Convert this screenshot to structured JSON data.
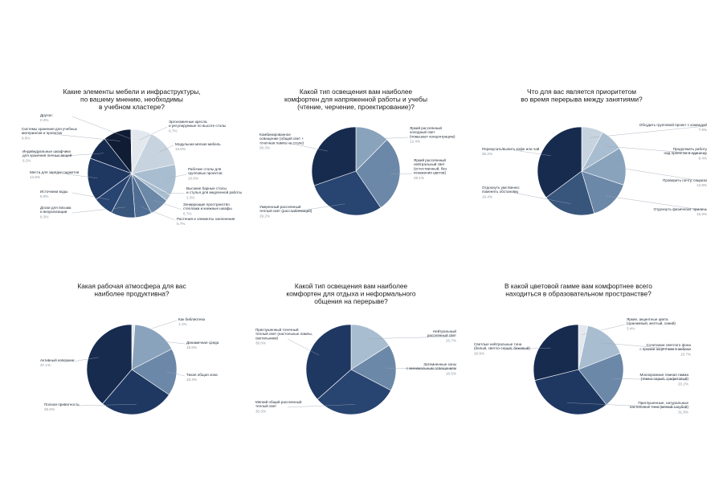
{
  "palette": [
    "#e3e8ee",
    "#c7d3df",
    "#a9bdd0",
    "#8aa3bd",
    "#6c88a8",
    "#4f6d92",
    "#38557c",
    "#284470",
    "#1f3862",
    "#172b4f",
    "#0f1c34"
  ],
  "chart_data": [
    {
      "type": "pie",
      "title": [
        "Какие элементы мебели и инфраструктуры,",
        "по вашему мнению, необходимы",
        "в учебном кластере?"
      ],
      "slices": [
        {
          "label": [
            "Эргономичные кресла",
            "и регулируемые по высоте столы"
          ],
          "value": 6.7,
          "value_label": "6.7%"
        },
        {
          "label": [
            "Модульная мягкая мебель"
          ],
          "value": 13.6,
          "value_label": "13.6%"
        },
        {
          "label": [
            "Рабочие столы для",
            "групповых проектов"
          ],
          "value": 10.6,
          "value_label": "10.6%"
        },
        {
          "label": [
            "Высокие барные столы",
            "и стулья для медленной работы"
          ],
          "value": 2.3,
          "value_label": "2.3%"
        },
        {
          "label": [
            "Зонирующие пространство",
            "стеллажи и книжные шкафы"
          ],
          "value": 6.7,
          "value_label": "6.7%"
        },
        {
          "label": [
            "Растения и элементы озеленения"
          ],
          "value": 5.7,
          "value_label": "5.7%"
        },
        {
          "label": [
            "Доски для письма",
            "и визуализации"
          ],
          "value": 8.3,
          "value_label": "8.3%"
        },
        {
          "label": [
            "Источники воды"
          ],
          "value": 6.9,
          "value_label": "6.9%"
        },
        {
          "label": [
            "Места для зарядки гаджетов"
          ],
          "value": 14.6,
          "value_label": "14.6%"
        },
        {
          "label": [
            "Индивидуальные шкафчики",
            "для хранения личных вещей"
          ],
          "value": 8.2,
          "value_label": "8.2%"
        },
        {
          "label": [
            "Системы хранения для учебных",
            "материалов и проектов"
          ],
          "value": 9.6,
          "value_label": "9.6%"
        },
        {
          "label": [
            "Другое:"
          ],
          "value": 0.3,
          "value_label": "0.3%"
        }
      ]
    },
    {
      "type": "pie",
      "title": [
        "Какой тип освещения вам наиболее",
        "комфортен для напряженной работы и учебы",
        "(чтение, черчение, проектирование)?"
      ],
      "slices": [
        {
          "label": [
            "Яркий рассеянный",
            "холодный свет",
            "(повышает концентрацию)"
          ],
          "value": 12.4,
          "value_label": "12.4%"
        },
        {
          "label": [
            "Яркий рассеянный",
            "нейтральный свет",
            "(естественный, без",
            "искажения цветов)"
          ],
          "value": 28.1,
          "value_label": "28.1%"
        },
        {
          "label": [
            "Умеренный рассеянный",
            "теплый свет (расслабляющий)"
          ],
          "value": 29.2,
          "value_label": "29.2%"
        },
        {
          "label": [
            "Комбинированное",
            "освещение (общий свет +",
            "точечная лампа на столе)"
          ],
          "value": 30.3,
          "value_label": "30.3%"
        }
      ]
    },
    {
      "type": "pie",
      "title": [
        "Что для вас является приоритетом",
        "во время перерыва между занятиями?"
      ],
      "slices": [
        {
          "label": [
            "Обсудить групповой проект с командой"
          ],
          "value": 7.9,
          "value_label": "7.9%"
        },
        {
          "label": [
            "Продолжить работу",
            "над проектом в одиночку"
          ],
          "value": 8.4,
          "value_label": "8.4%"
        },
        {
          "label": [
            "Проверить почту, соцсети"
          ],
          "value": 13.8,
          "value_label": "13.8%"
        },
        {
          "label": [
            "Отдохнуть физически: прилечь"
          ],
          "value": 15.3,
          "value_label": "15.3%"
        },
        {
          "label": [
            "Отдохнуть умственно:",
            "поменять обстановку"
          ],
          "value": 19.4,
          "value_label": "19.4%"
        },
        {
          "label": [
            "Перекусить/выпить кофе или чай"
          ],
          "value": 35.2,
          "value_label": "35.2%"
        }
      ]
    },
    {
      "type": "pie",
      "title": [
        "Какая рабочая атмосфера для вас",
        "наиболее продуктивна?"
      ],
      "slices": [
        {
          "label": [
            "Как библиотека"
          ],
          "value": 1.1,
          "value_label": "1.1%"
        },
        {
          "label": [
            "Динамичная среда"
          ],
          "value": 15.6,
          "value_label": "15.6%"
        },
        {
          "label": [
            "Тихая общая зона"
          ],
          "value": 16.3,
          "value_label": "16.3%"
        },
        {
          "label": [
            "Полная приватность"
          ],
          "value": 25.6,
          "value_label": "25.6%"
        },
        {
          "label": [
            "Активный коворкинг"
          ],
          "value": 37.1,
          "value_label": "37.1%"
        }
      ]
    },
    {
      "type": "pie",
      "title": [
        "Какой тип освещения вам наиболее",
        "комфортен для отдыха и неформального",
        "общения на перерыве?"
      ],
      "slices": [
        {
          "label": [
            "Нейтральный",
            "рассеянный свет"
          ],
          "value": 15.7,
          "value_label": "15.7%"
        },
        {
          "label": [
            "Затемненные зоны",
            "с минимальным освещением"
          ],
          "value": 16.5,
          "value_label": "16.5%"
        },
        {
          "label": [
            "Мягкий общий рассеянный",
            "теплый свет"
          ],
          "value": 30.3,
          "value_label": "30.3%"
        },
        {
          "label": [
            "Приглушенный точечный",
            "теплый свет (настольные лампы,",
            "светильники)"
          ],
          "value": 36.0,
          "value_label": "36.0%"
        }
      ]
    },
    {
      "type": "pie",
      "title": [
        "В какой цветовой гамме вам комфортнее всего",
        "находиться в образовательном пространстве?"
      ],
      "slices": [
        {
          "label": [
            "Яркие, акцентные цвета",
            "(оранжевый, желтый, синий)"
          ],
          "value": 3.4,
          "value_label": "3.4%"
        },
        {
          "label": [
            "Сочетание светлого фона",
            "с яркими акцентами в мебели"
          ],
          "value": 15.7,
          "value_label": "15.7%"
        },
        {
          "label": [
            "Монохромная темная гамма",
            "(темно-серый, графитовый)"
          ],
          "value": 20.2,
          "value_label": "20.2%"
        },
        {
          "label": [
            "Приглушенные, натуральные",
            "пастельные тона (мягкий голубой)"
          ],
          "value": 31.8,
          "value_label": "31.8%"
        },
        {
          "label": [
            "Светлые нейтральные тона",
            "(белый, светло-серый, бежевый)"
          ],
          "value": 28.9,
          "value_label": "28.9%"
        }
      ]
    }
  ]
}
